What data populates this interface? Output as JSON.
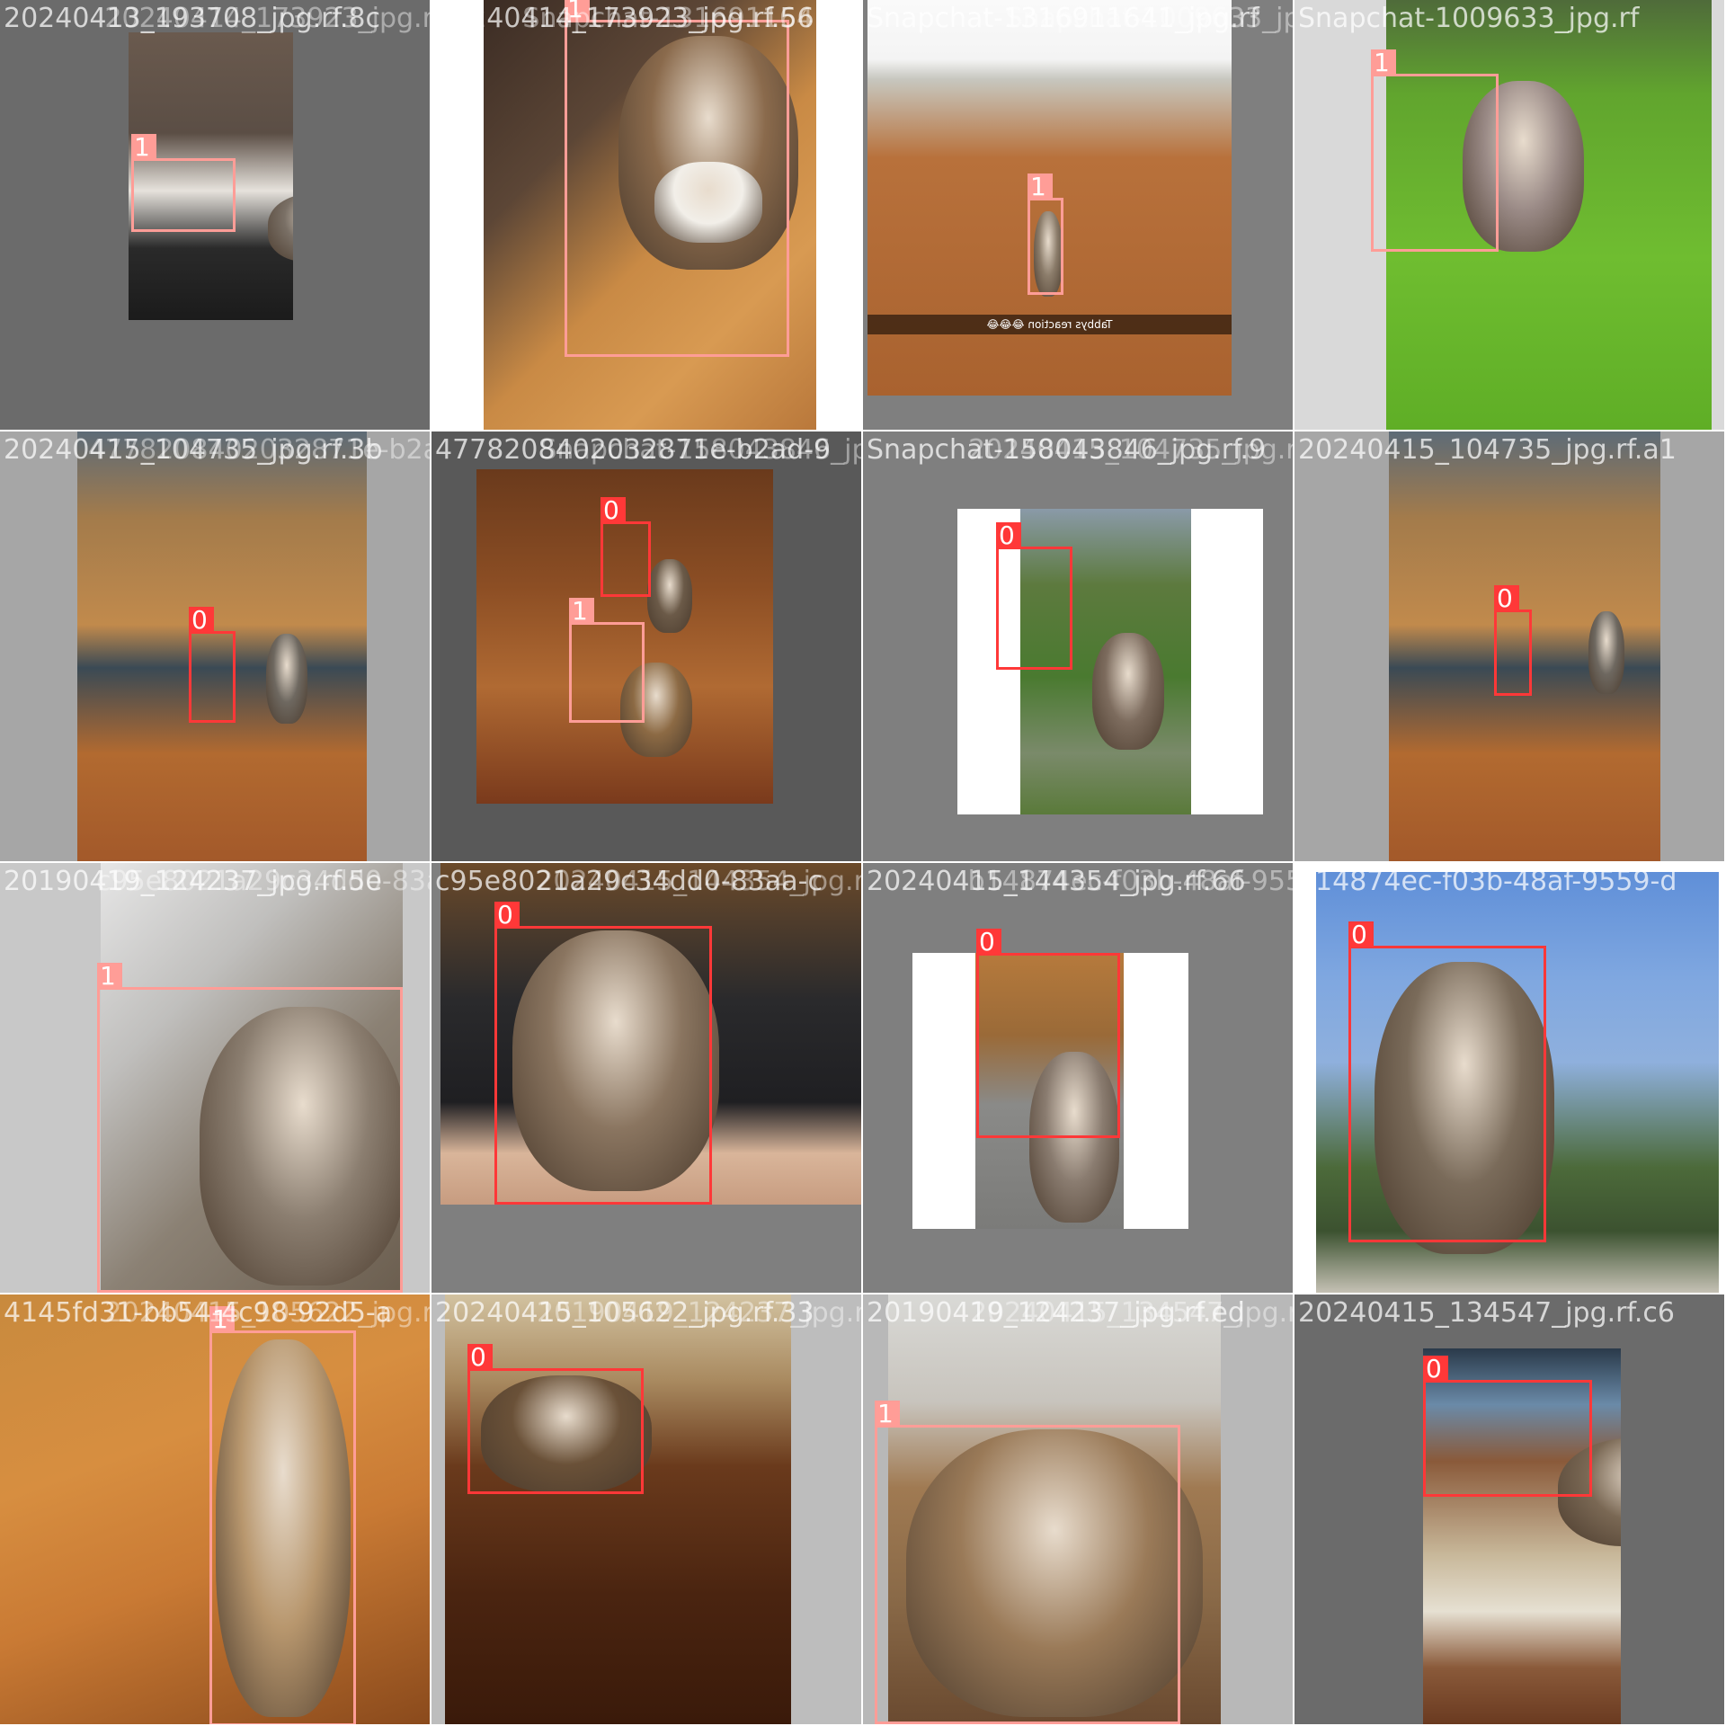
{
  "mosaic": {
    "class_colors": {
      "0": "#ff3838",
      "1": "#ff9d97"
    },
    "tiles": [
      {
        "filename": "20240413_193708_jpg.rf.8c",
        "overlap_text": "20240414_173923_jpg.rf.56",
        "boxes": [
          {
            "label": "1"
          }
        ]
      },
      {
        "filename": "20240414_173923_jpg.rf.56",
        "overlap_text": "Snapchat-1316911641_jpg.rf",
        "boxes": [
          {
            "label": "1"
          }
        ]
      },
      {
        "filename": "Snapchat-1316911641_jpg.rf",
        "overlap_text": "Snapchat-1009633_jpg.rf",
        "caption": "Tabbys reaction 😂😂😂",
        "boxes": [
          {
            "label": "1"
          }
        ]
      },
      {
        "filename": "Snapchat-1009633_jpg.rf",
        "boxes": [
          {
            "label": "1"
          }
        ]
      },
      {
        "filename": "20240415_104735_jpg.rf.3b",
        "overlap_text": "4778208402032871e-b2ad-9",
        "boxes": [
          {
            "label": "0"
          }
        ]
      },
      {
        "filename": "4778208402032871e-b2ad-9",
        "overlap_text": "Snapchat-158043846_jpg.rf",
        "boxes": [
          {
            "label": "0"
          },
          {
            "label": "1"
          }
        ]
      },
      {
        "filename": "Snapchat-158043846_jpg.rf.9",
        "overlap_text": "20240415_104735_jpg.rf.a1",
        "boxes": [
          {
            "label": "0"
          }
        ]
      },
      {
        "filename": "20240415_104735_jpg.rf.a1",
        "boxes": [
          {
            "label": "0"
          }
        ]
      },
      {
        "filename": "20190419_124237_jpg.rf.5e",
        "overlap_text": "c95e8021a29c34dd0-83aa-c",
        "boxes": [
          {
            "label": "1"
          }
        ]
      },
      {
        "filename": "c95e8021a29c34dd0-83aa-c",
        "overlap_text": "20240415_144354_jpg.rf.66",
        "boxes": [
          {
            "label": "0"
          }
        ]
      },
      {
        "filename": "20240415_144354_jpg.rf.66",
        "overlap_text": "b14874ec-f03b-48af-9559-d",
        "boxes": [
          {
            "label": "0"
          }
        ]
      },
      {
        "filename": "b14874ec-f03b-48af-9559-d",
        "boxes": [
          {
            "label": "0"
          }
        ]
      },
      {
        "filename": "4145fd31-bb54-4c98-92d5-a",
        "overlap_text": "20240415_105622_jpg.rf.33",
        "boxes": [
          {
            "label": "1"
          }
        ]
      },
      {
        "filename": "20240415_105622_jpg.rf.33",
        "overlap_text": "20190419_124237_jpg.rf.ed",
        "boxes": [
          {
            "label": "0"
          }
        ]
      },
      {
        "filename": "20190419_124237_jpg.rf.ed",
        "overlap_text": "20240415_134547_jpg.rf.c6",
        "boxes": [
          {
            "label": "1"
          }
        ]
      },
      {
        "filename": "20240415_134547_jpg.rf.c6",
        "boxes": [
          {
            "label": "0"
          }
        ]
      }
    ]
  }
}
